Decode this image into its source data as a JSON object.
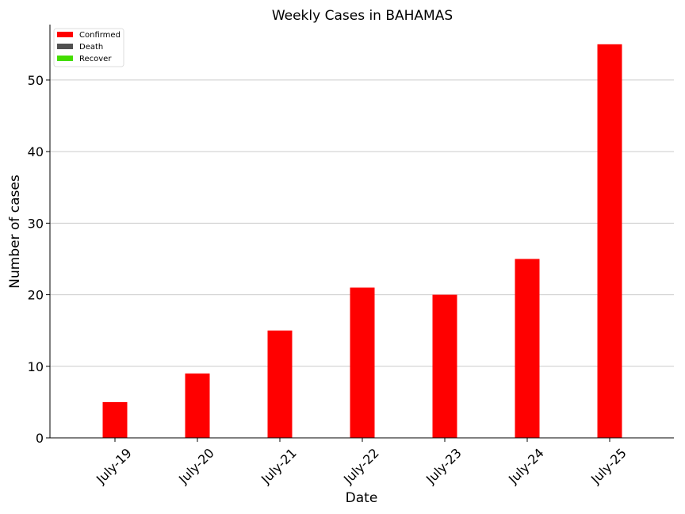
{
  "chart_data": {
    "type": "bar",
    "title": "Weekly Cases in BAHAMAS",
    "xlabel": "Date",
    "ylabel": "Number of cases",
    "categories": [
      "July-19",
      "July-20",
      "July-21",
      "July-22",
      "July-23",
      "July-24",
      "July-25"
    ],
    "series": [
      {
        "name": "Confirmed",
        "color": "#ff0000",
        "values": [
          5,
          9,
          15,
          21,
          20,
          25,
          55
        ]
      },
      {
        "name": "Death",
        "color": "#505050",
        "values": [
          0,
          0,
          0,
          0,
          0,
          0,
          0
        ]
      },
      {
        "name": "Recover",
        "color": "#44dd00",
        "values": [
          0,
          0,
          0,
          0,
          0,
          0,
          0
        ]
      }
    ],
    "ylim": [
      0,
      57.75
    ],
    "yticks": [
      0,
      10,
      20,
      30,
      40,
      50
    ],
    "grid": "horizontal",
    "legend_position": "top-left"
  }
}
